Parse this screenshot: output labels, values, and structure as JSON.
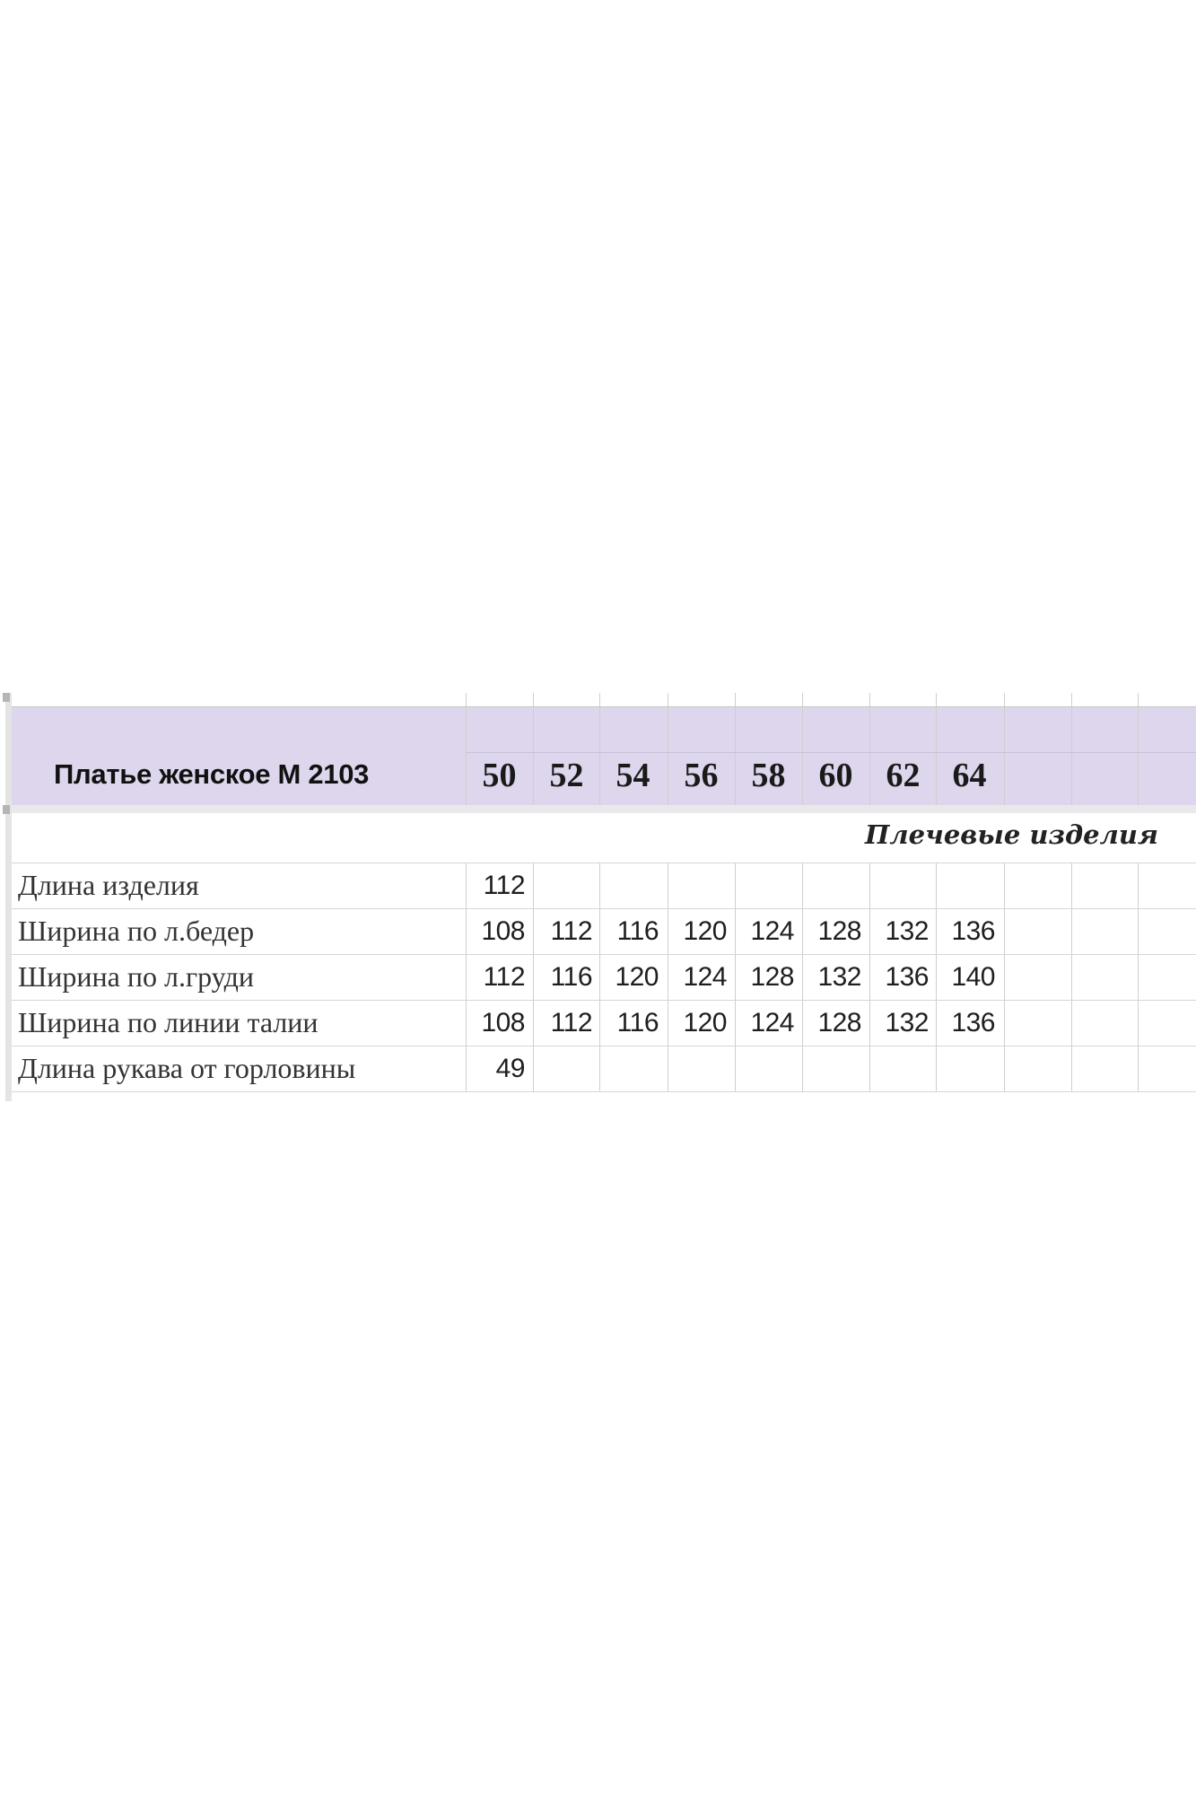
{
  "table": {
    "title": "Платье женское М 2103",
    "sizes": [
      "50",
      "52",
      "54",
      "56",
      "58",
      "60",
      "62",
      "64"
    ],
    "section_label": "Плечевые изделия",
    "rows": [
      {
        "label": "Длина изделия",
        "values": [
          "112",
          "",
          "",
          "",
          "",
          "",
          "",
          ""
        ]
      },
      {
        "label": "Ширина по л.бедер",
        "values": [
          "108",
          "112",
          "116",
          "120",
          "124",
          "128",
          "132",
          "136"
        ]
      },
      {
        "label": "Ширина по л.груди",
        "values": [
          "112",
          "116",
          "120",
          "124",
          "128",
          "132",
          "136",
          "140"
        ]
      },
      {
        "label": "Ширина по линии талии",
        "values": [
          "108",
          "112",
          "116",
          "120",
          "124",
          "128",
          "132",
          "136"
        ]
      },
      {
        "label": "Длина рукава  от горловины",
        "values": [
          "49",
          "",
          "",
          "",
          "",
          "",
          "",
          ""
        ]
      }
    ]
  },
  "colors": {
    "header_bg": "#ddd6ec",
    "grid": "#d6d6d6"
  }
}
